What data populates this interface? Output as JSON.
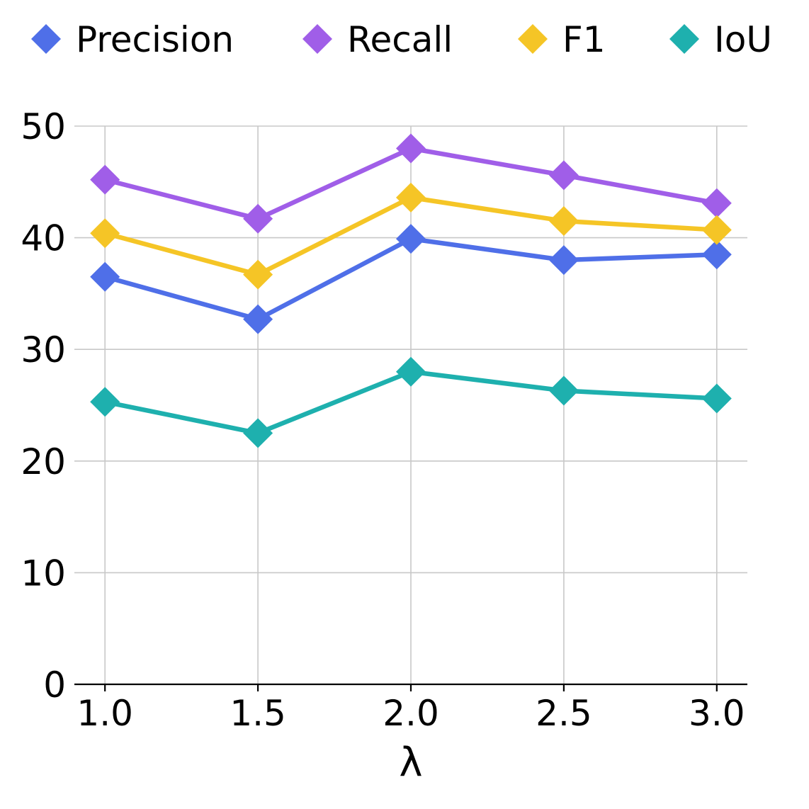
{
  "chart_data": {
    "type": "line",
    "xlabel": "λ",
    "ylabel": "",
    "x": [
      1.0,
      1.5,
      2.0,
      2.5,
      3.0
    ],
    "x_tick_labels": [
      "1.0",
      "1.5",
      "2.0",
      "2.5",
      "3.0"
    ],
    "y_ticks": [
      0,
      10,
      20,
      30,
      40,
      50
    ],
    "y_tick_labels": [
      "0",
      "10",
      "20",
      "30",
      "40",
      "50"
    ],
    "xlim": [
      0.9,
      3.1
    ],
    "ylim": [
      0,
      50
    ],
    "grid": true,
    "legend_position": "top",
    "marker": "diamond",
    "series": [
      {
        "name": "Precision",
        "color": "#4f6fe8",
        "values": [
          36.5,
          32.7,
          39.9,
          38.0,
          38.5
        ]
      },
      {
        "name": "Recall",
        "color": "#a05ee8",
        "values": [
          45.2,
          41.7,
          48.0,
          45.6,
          43.1
        ]
      },
      {
        "name": "F1",
        "color": "#f5c526",
        "values": [
          40.4,
          36.7,
          43.6,
          41.5,
          40.7
        ]
      },
      {
        "name": "IoU",
        "color": "#1eb0ae",
        "values": [
          25.3,
          22.5,
          28.0,
          26.3,
          25.6
        ]
      }
    ]
  }
}
